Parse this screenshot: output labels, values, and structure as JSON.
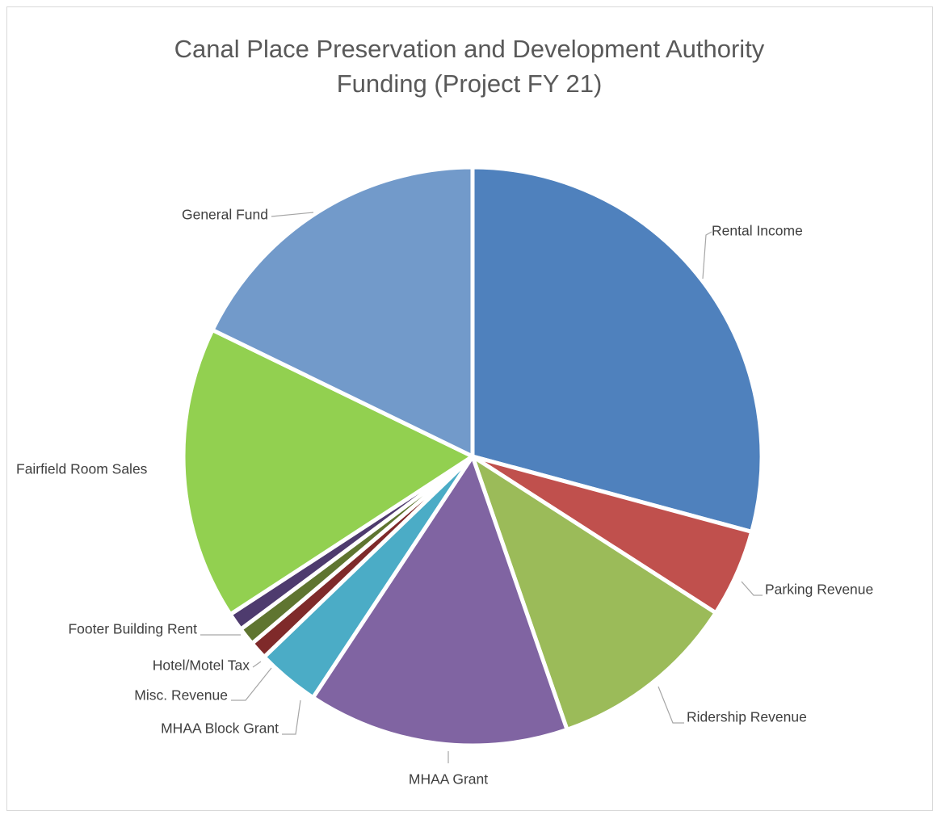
{
  "chart_data": {
    "type": "pie",
    "title_lines": [
      "Canal Place Preservation and Development Authority",
      "Funding (Project FY 21)"
    ],
    "legend": "none",
    "start_angle_deg": 0,
    "direction": "clockwise",
    "slices": [
      {
        "name": "Rental Income",
        "value": 29.2,
        "color": "#4F81BD"
      },
      {
        "name": "Parking Revenue",
        "value": 4.9,
        "color": "#C0504D"
      },
      {
        "name": "Ridership Revenue",
        "value": 10.6,
        "color": "#9BBB59"
      },
      {
        "name": "MHAA Grant",
        "value": 14.6,
        "color": "#8064A2"
      },
      {
        "name": "MHAA Block Grant",
        "value": 3.5,
        "color": "#4BACC6"
      },
      {
        "name": "Misc. Revenue",
        "value": 1.0,
        "color": "#7F2A2A"
      },
      {
        "name": "Hotel/Motel Tax",
        "value": 1.0,
        "color": "#5F7530"
      },
      {
        "name": "Footer Building Rent",
        "value": 1.0,
        "color": "#4E3B6E"
      },
      {
        "name": "Fairfield Room Sales",
        "value": 16.4,
        "color": "#92D050"
      },
      {
        "name": "General Fund",
        "value": 17.8,
        "color": "#729ACA"
      }
    ]
  }
}
